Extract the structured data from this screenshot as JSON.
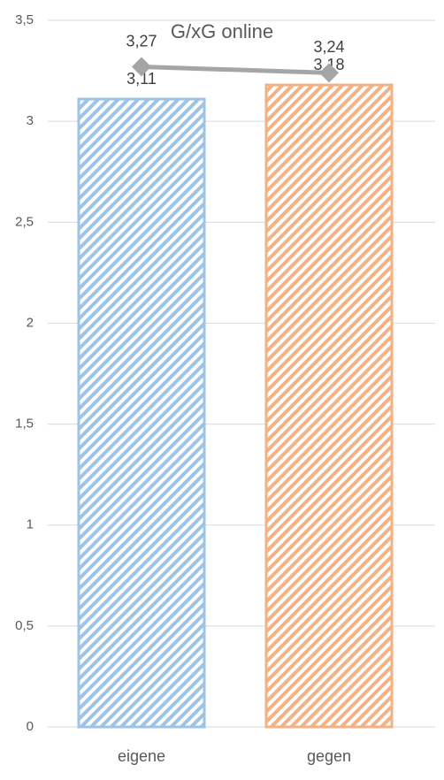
{
  "chart_data": {
    "type": "bar",
    "title": "G/xG online",
    "categories": [
      "eigene",
      "gegen"
    ],
    "series": [
      {
        "type": "bar",
        "colors": [
          "#9dc3e6",
          "#f4b183"
        ],
        "values": [
          3.11,
          3.18
        ],
        "value_labels": [
          "3,11",
          "3,18"
        ]
      },
      {
        "type": "line",
        "color": "#a5a5a5",
        "values": [
          3.27,
          3.24
        ],
        "value_labels": [
          "3,27",
          "3,24"
        ]
      }
    ],
    "ylim": [
      0,
      3.5
    ],
    "yticks": [
      0,
      {
        "value": 0.5,
        "label": "0,5"
      },
      1,
      {
        "value": 1.5,
        "label": "1,5"
      },
      2,
      {
        "value": 2.5,
        "label": "2,5"
      },
      3,
      {
        "value": 3.5,
        "label": "3,5"
      }
    ],
    "grid": true
  }
}
